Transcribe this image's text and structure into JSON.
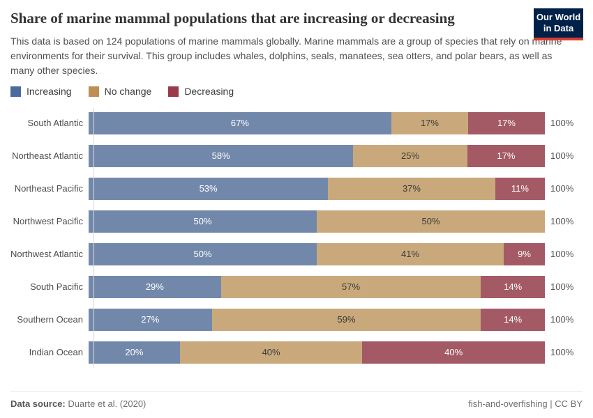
{
  "header": {
    "title": "Share of marine mammal populations that are increasing or decreasing",
    "subtitle": "This data is based on 124 populations of marine mammals globally. Marine mammals are a group of species that rely on marine environments for their survival. This group includes whales, dolphins, seals, manatees, sea otters, and polar bears, as well as many other species.",
    "logo": {
      "line1": "Our World",
      "line2": "in Data",
      "bg_color": "#002147",
      "accent_color": "#dc3a2f"
    }
  },
  "legend": [
    {
      "label": "Increasing",
      "color": "#4c6a9c"
    },
    {
      "label": "No change",
      "color": "#bf8e55"
    },
    {
      "label": "Decreasing",
      "color": "#9b3a4a"
    }
  ],
  "chart_data": {
    "type": "bar",
    "orientation": "horizontal",
    "stacked": true,
    "xlim": [
      0,
      100
    ],
    "value_suffix": "%",
    "row_total_label": "100%",
    "categories": [
      "South Atlantic",
      "Northeast Atlantic",
      "Northeast Pacific",
      "Northwest Pacific",
      "Northwest Atlantic",
      "South Pacific",
      "Southern Ocean",
      "Indian Ocean"
    ],
    "series": [
      {
        "name": "Increasing",
        "color": "#7288ab",
        "label_color": "#ffffff",
        "values": [
          67,
          58,
          53,
          50,
          50,
          29,
          27,
          20
        ]
      },
      {
        "name": "No change",
        "color": "#c9a97c",
        "label_color": "#3a3a3a",
        "values": [
          17,
          25,
          37,
          50,
          41,
          57,
          59,
          40
        ]
      },
      {
        "name": "Decreasing",
        "color": "#a35a65",
        "label_color": "#ffffff",
        "values": [
          17,
          17,
          11,
          0,
          9,
          14,
          14,
          40
        ]
      }
    ]
  },
  "footer": {
    "source_label": "Data source:",
    "source_value": "Duarte et al. (2020)",
    "right_text": "fish-and-overfishing | CC BY"
  }
}
